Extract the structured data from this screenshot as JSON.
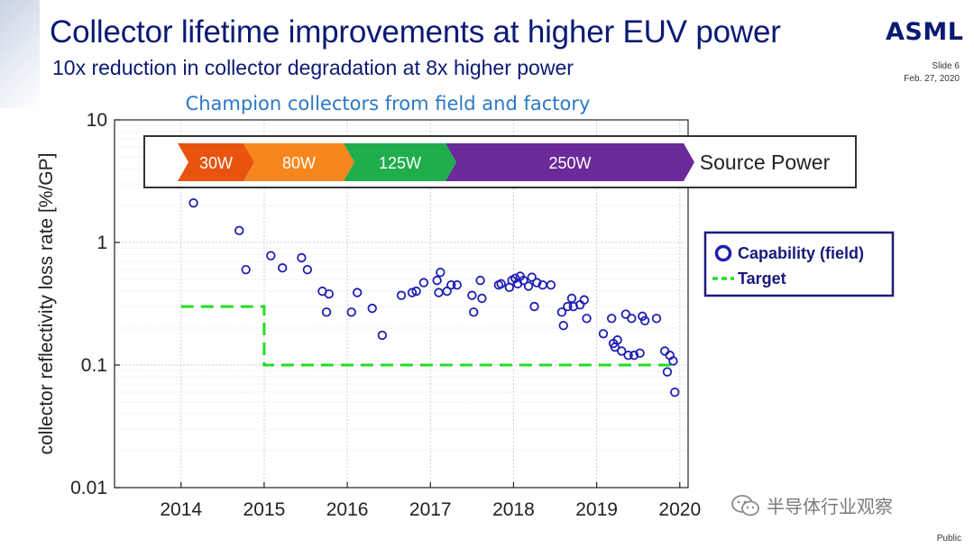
{
  "header": {
    "title": "Collector lifetime improvements at higher EUV power",
    "subtitle": "10x reduction in collector degradation at 8x higher power",
    "logo": "ASML",
    "slide": "Slide 6",
    "date": "Feb. 27, 2020"
  },
  "footer": {
    "public": "Public",
    "watermark": "半导体行业观察"
  },
  "colors": {
    "title": "#0a1a73",
    "field": "#1f1fb4",
    "target": "#22dd22",
    "seg_30w": "#e8540e",
    "seg_80w": "#f7861e",
    "seg_125w": "#1fae4b",
    "seg_250w": "#6a2a9a"
  },
  "chart_data": {
    "type": "scatter",
    "title": "Champion collectors from field and factory",
    "xlabel": "",
    "ylabel": "collector reflectivity loss rate [%/GP]",
    "xlim": [
      2013.2,
      2020.1
    ],
    "ylim": [
      0.01,
      10
    ],
    "yscale": "log",
    "xticks": [
      2014,
      2015,
      2016,
      2017,
      2018,
      2019,
      2020
    ],
    "xtick_labels": [
      "2014",
      "2015",
      "2016",
      "2017",
      "2018",
      "2019",
      "2020"
    ],
    "yticks": [
      0.01,
      0.1,
      1,
      10
    ],
    "ytick_labels": [
      "0.01",
      "0.1",
      "1",
      "10"
    ],
    "grid": true,
    "power_banner": {
      "label": "Source Power",
      "segments": [
        {
          "label": "30W",
          "color": "#e8540e"
        },
        {
          "label": "80W",
          "color": "#f7861e"
        },
        {
          "label": "125W",
          "color": "#1fae4b"
        },
        {
          "label": "250W",
          "color": "#6a2a9a"
        }
      ]
    },
    "legend": {
      "position": "right",
      "entries": [
        "Capability (field)",
        "Target"
      ]
    },
    "series": [
      {
        "name": "Capability (field)",
        "style": "open-circle",
        "color": "#1f1fb4",
        "points": [
          [
            2014.15,
            2.1
          ],
          [
            2014.7,
            1.25
          ],
          [
            2014.78,
            0.6
          ],
          [
            2015.08,
            0.78
          ],
          [
            2015.22,
            0.62
          ],
          [
            2015.45,
            0.75
          ],
          [
            2015.52,
            0.6
          ],
          [
            2015.7,
            0.4
          ],
          [
            2015.78,
            0.38
          ],
          [
            2015.75,
            0.27
          ],
          [
            2016.05,
            0.27
          ],
          [
            2016.12,
            0.39
          ],
          [
            2016.3,
            0.29
          ],
          [
            2016.42,
            0.175
          ],
          [
            2016.65,
            0.37
          ],
          [
            2016.78,
            0.39
          ],
          [
            2016.83,
            0.4
          ],
          [
            2016.92,
            0.47
          ],
          [
            2017.08,
            0.49
          ],
          [
            2017.12,
            0.57
          ],
          [
            2017.1,
            0.39
          ],
          [
            2017.2,
            0.4
          ],
          [
            2017.25,
            0.45
          ],
          [
            2017.32,
            0.45
          ],
          [
            2017.5,
            0.37
          ],
          [
            2017.52,
            0.27
          ],
          [
            2017.6,
            0.49
          ],
          [
            2017.62,
            0.35
          ],
          [
            2017.82,
            0.45
          ],
          [
            2017.85,
            0.46
          ],
          [
            2017.95,
            0.43
          ],
          [
            2017.98,
            0.49
          ],
          [
            2018.02,
            0.51
          ],
          [
            2018.05,
            0.46
          ],
          [
            2018.08,
            0.53
          ],
          [
            2018.12,
            0.49
          ],
          [
            2018.18,
            0.44
          ],
          [
            2018.22,
            0.52
          ],
          [
            2018.28,
            0.47
          ],
          [
            2018.25,
            0.3
          ],
          [
            2018.35,
            0.45
          ],
          [
            2018.45,
            0.45
          ],
          [
            2018.58,
            0.27
          ],
          [
            2018.6,
            0.21
          ],
          [
            2018.65,
            0.3
          ],
          [
            2018.7,
            0.35
          ],
          [
            2018.72,
            0.3
          ],
          [
            2018.8,
            0.31
          ],
          [
            2018.85,
            0.34
          ],
          [
            2018.88,
            0.24
          ],
          [
            2019.08,
            0.18
          ],
          [
            2019.18,
            0.24
          ],
          [
            2019.2,
            0.15
          ],
          [
            2019.22,
            0.14
          ],
          [
            2019.25,
            0.16
          ],
          [
            2019.3,
            0.13
          ],
          [
            2019.35,
            0.26
          ],
          [
            2019.38,
            0.12
          ],
          [
            2019.42,
            0.24
          ],
          [
            2019.45,
            0.12
          ],
          [
            2019.52,
            0.125
          ],
          [
            2019.55,
            0.25
          ],
          [
            2019.58,
            0.23
          ],
          [
            2019.72,
            0.24
          ],
          [
            2019.82,
            0.13
          ],
          [
            2019.85,
            0.088
          ],
          [
            2019.88,
            0.12
          ],
          [
            2019.92,
            0.108
          ],
          [
            2019.94,
            0.06
          ]
        ]
      },
      {
        "name": "Target",
        "style": "dashed-step",
        "color": "#22dd22",
        "points": [
          [
            2014.0,
            0.3
          ],
          [
            2015.0,
            0.3
          ],
          [
            2015.0,
            0.1
          ],
          [
            2019.98,
            0.1
          ]
        ]
      }
    ]
  }
}
